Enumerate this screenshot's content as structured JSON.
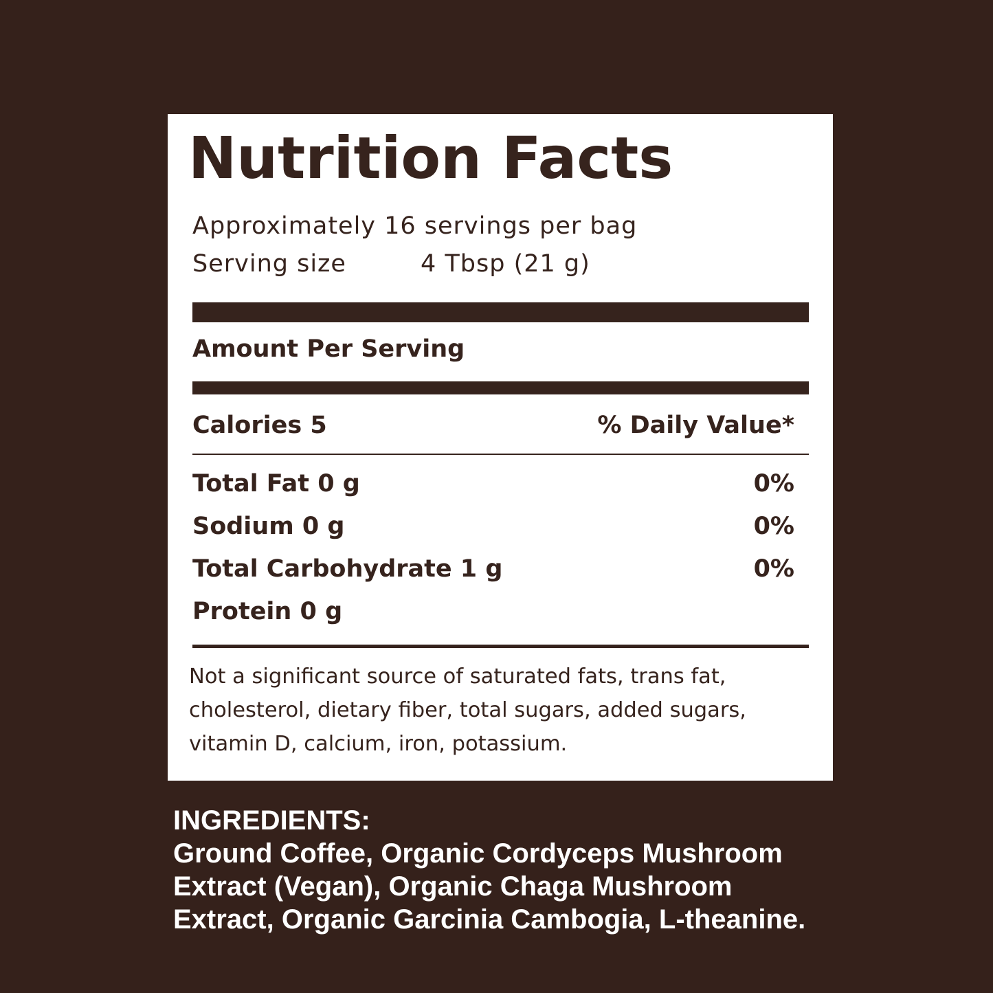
{
  "colors": {
    "background": "#35211b",
    "panel": "#ffffff",
    "text": "#36231d"
  },
  "label": {
    "title": "Nutrition Facts",
    "servings_per_container": "Approximately 16 servings per bag",
    "serving_size_label": "Serving size",
    "serving_size_value": "4 Tbsp (21 g)",
    "amount_per_serving": "Amount Per Serving",
    "calories": "Calories 5",
    "daily_value_header": "% Daily Value*",
    "nutrients": [
      {
        "name": "Total Fat 0 g",
        "dv": "0%"
      },
      {
        "name": "Sodium 0 g",
        "dv": "0%"
      },
      {
        "name": "Total Carbohydrate 1 g",
        "dv": "0%"
      },
      {
        "name": "Protein 0 g",
        "dv": ""
      }
    ],
    "footnote": "Not a significant source of saturated fats, trans fat, cholesterol, dietary fiber, total sugars, added sugars, vitamin D, calcium, iron, potassium."
  },
  "ingredients": {
    "heading": "INGREDIENTS:",
    "lines": [
      "Ground Coffee, Organic Cordyceps Mushroom",
      "Extract (Vegan), Organic Chaga Mushroom",
      "Extract, Organic Garcinia Cambogia, L-theanine."
    ]
  }
}
